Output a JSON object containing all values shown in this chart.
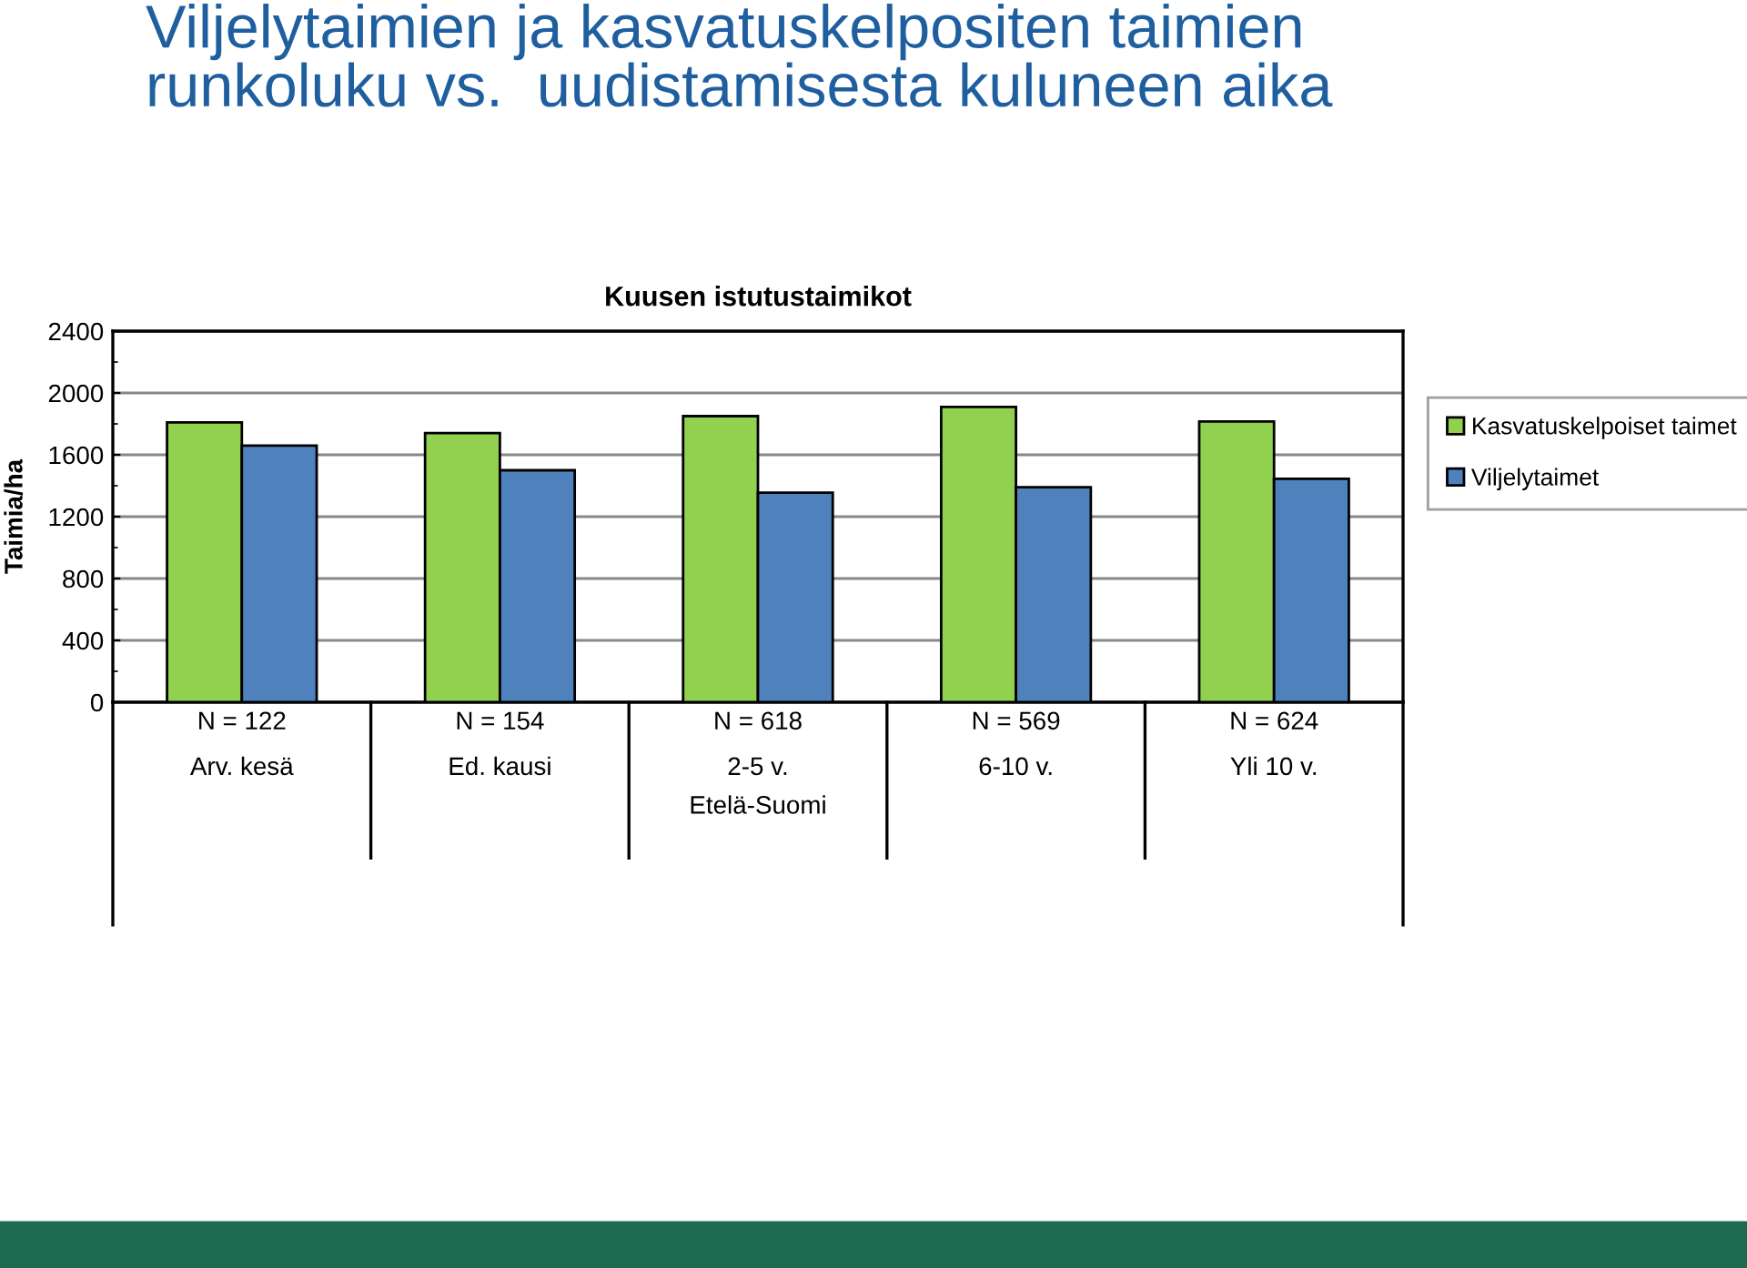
{
  "chart_data": {
    "type": "bar",
    "title": "Viljelytaimien ja kasvatuskelpositen taimien\nrunkoluku vs.  uudistamisesta kuluneen aika",
    "subtitle": "Kuusen istutustaimikot",
    "xlabel": "Etelä-Suomi",
    "ylabel": "Taimia/ha",
    "categories": [
      "N = 122\nArv. kesä",
      "N = 154\nEd. kausi",
      "N = 618\n2-5 v.",
      "N = 569\n6-10 v.",
      "N = 624\nYli 10 v."
    ],
    "series": [
      {
        "name": "Kasvatuskelpoiset taimet",
        "color": "#92d050",
        "values": [
          1810,
          1740,
          1850,
          1910,
          1815
        ]
      },
      {
        "name": "Viljelytaimet",
        "color": "#4f81bd",
        "values": [
          1660,
          1500,
          1355,
          1390,
          1445
        ]
      }
    ],
    "ylim": [
      0,
      2400
    ],
    "yticks": [
      0,
      400,
      800,
      1200,
      1600,
      2000,
      2400
    ],
    "grid": "y",
    "legend": "right"
  }
}
